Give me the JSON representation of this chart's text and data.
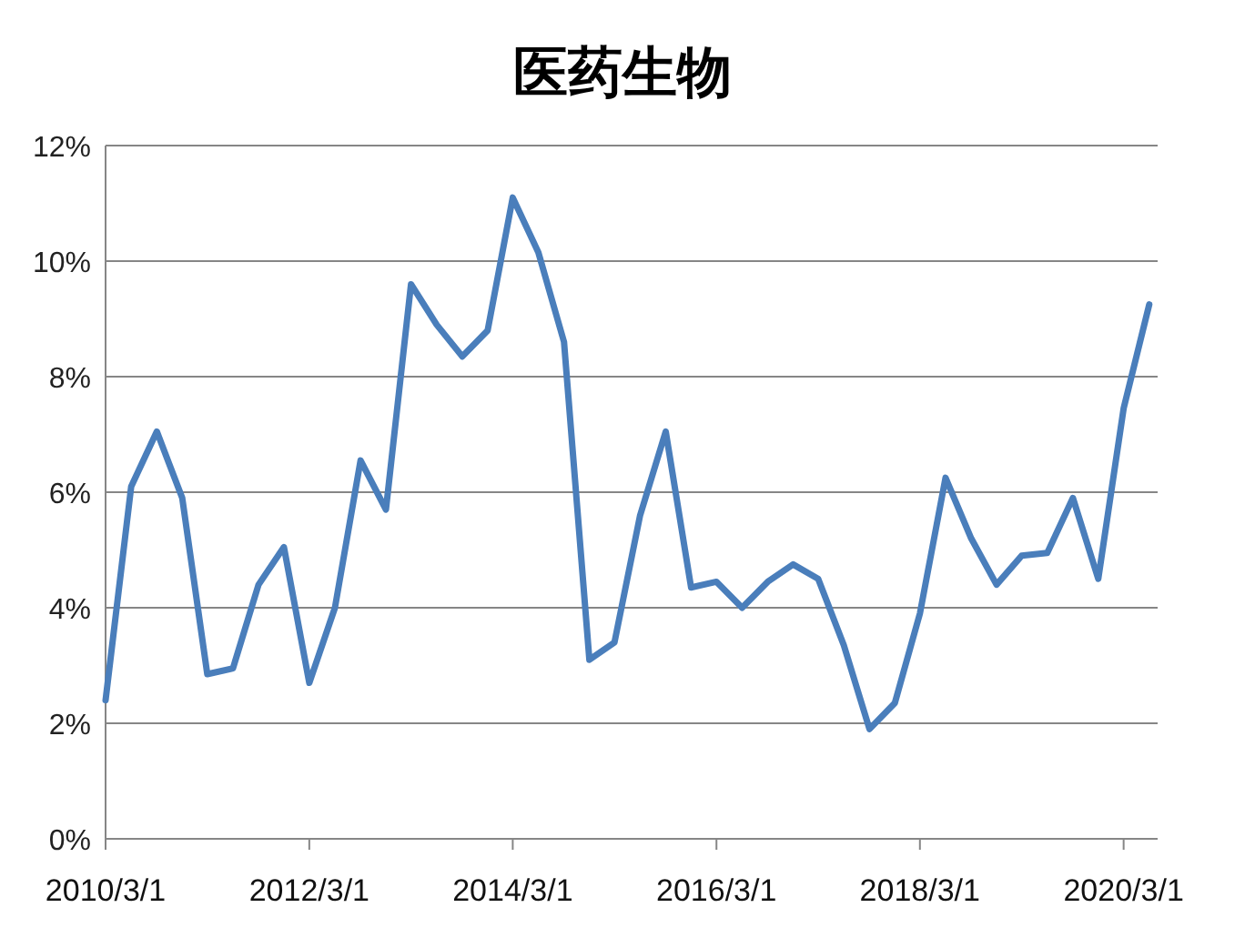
{
  "chart_data": {
    "type": "line",
    "title": "医药生物",
    "x": [
      "2010-03-01",
      "2010-06-01",
      "2010-09-01",
      "2010-12-01",
      "2011-03-01",
      "2011-06-01",
      "2011-09-01",
      "2011-12-01",
      "2012-03-01",
      "2012-06-01",
      "2012-09-01",
      "2012-12-01",
      "2013-03-01",
      "2013-06-01",
      "2013-09-01",
      "2013-12-01",
      "2014-03-01",
      "2014-06-01",
      "2014-09-01",
      "2014-12-01",
      "2015-03-01",
      "2015-06-01",
      "2015-09-01",
      "2015-12-01",
      "2016-03-01",
      "2016-06-01",
      "2016-09-01",
      "2016-12-01",
      "2017-03-01",
      "2017-06-01",
      "2017-09-01",
      "2017-12-01",
      "2018-03-01",
      "2018-06-01",
      "2018-09-01",
      "2018-12-01",
      "2019-03-01",
      "2019-06-01",
      "2019-09-01",
      "2019-12-01",
      "2020-03-01",
      "2020-06-01"
    ],
    "series": [
      {
        "color": "#4a7ebb",
        "values": [
          2.4,
          6.1,
          7.05,
          5.9,
          2.85,
          2.95,
          4.4,
          5.05,
          2.7,
          4.0,
          6.55,
          5.7,
          9.6,
          8.9,
          8.35,
          8.8,
          11.1,
          10.15,
          8.6,
          3.1,
          3.4,
          5.6,
          7.05,
          4.35,
          4.45,
          4.0,
          4.45,
          4.75,
          4.5,
          3.35,
          1.9,
          2.35,
          3.9,
          6.25,
          5.2,
          4.4,
          4.9,
          4.95,
          5.9,
          4.5,
          7.45,
          9.25
        ]
      }
    ],
    "xlim": [
      "2010-03-01",
      "2020-07-01"
    ],
    "xticks": [
      {
        "value": "2010-03-01",
        "label": "2010/3/1"
      },
      {
        "value": "2012-03-01",
        "label": "2012/3/1"
      },
      {
        "value": "2014-03-01",
        "label": "2014/3/1"
      },
      {
        "value": "2016-03-01",
        "label": "2016/3/1"
      },
      {
        "value": "2018-03-01",
        "label": "2018/3/1"
      },
      {
        "value": "2020-03-01",
        "label": "2020/3/1"
      }
    ],
    "ylim": [
      0,
      12
    ],
    "yticks": [
      {
        "value": 0,
        "label": "0%"
      },
      {
        "value": 2,
        "label": "2%"
      },
      {
        "value": 4,
        "label": "4%"
      },
      {
        "value": 6,
        "label": "6%"
      },
      {
        "value": 8,
        "label": "8%"
      },
      {
        "value": 10,
        "label": "10%"
      },
      {
        "value": 12,
        "label": "12%"
      }
    ],
    "grid": "y",
    "marker": "none",
    "line_style": "solid"
  }
}
